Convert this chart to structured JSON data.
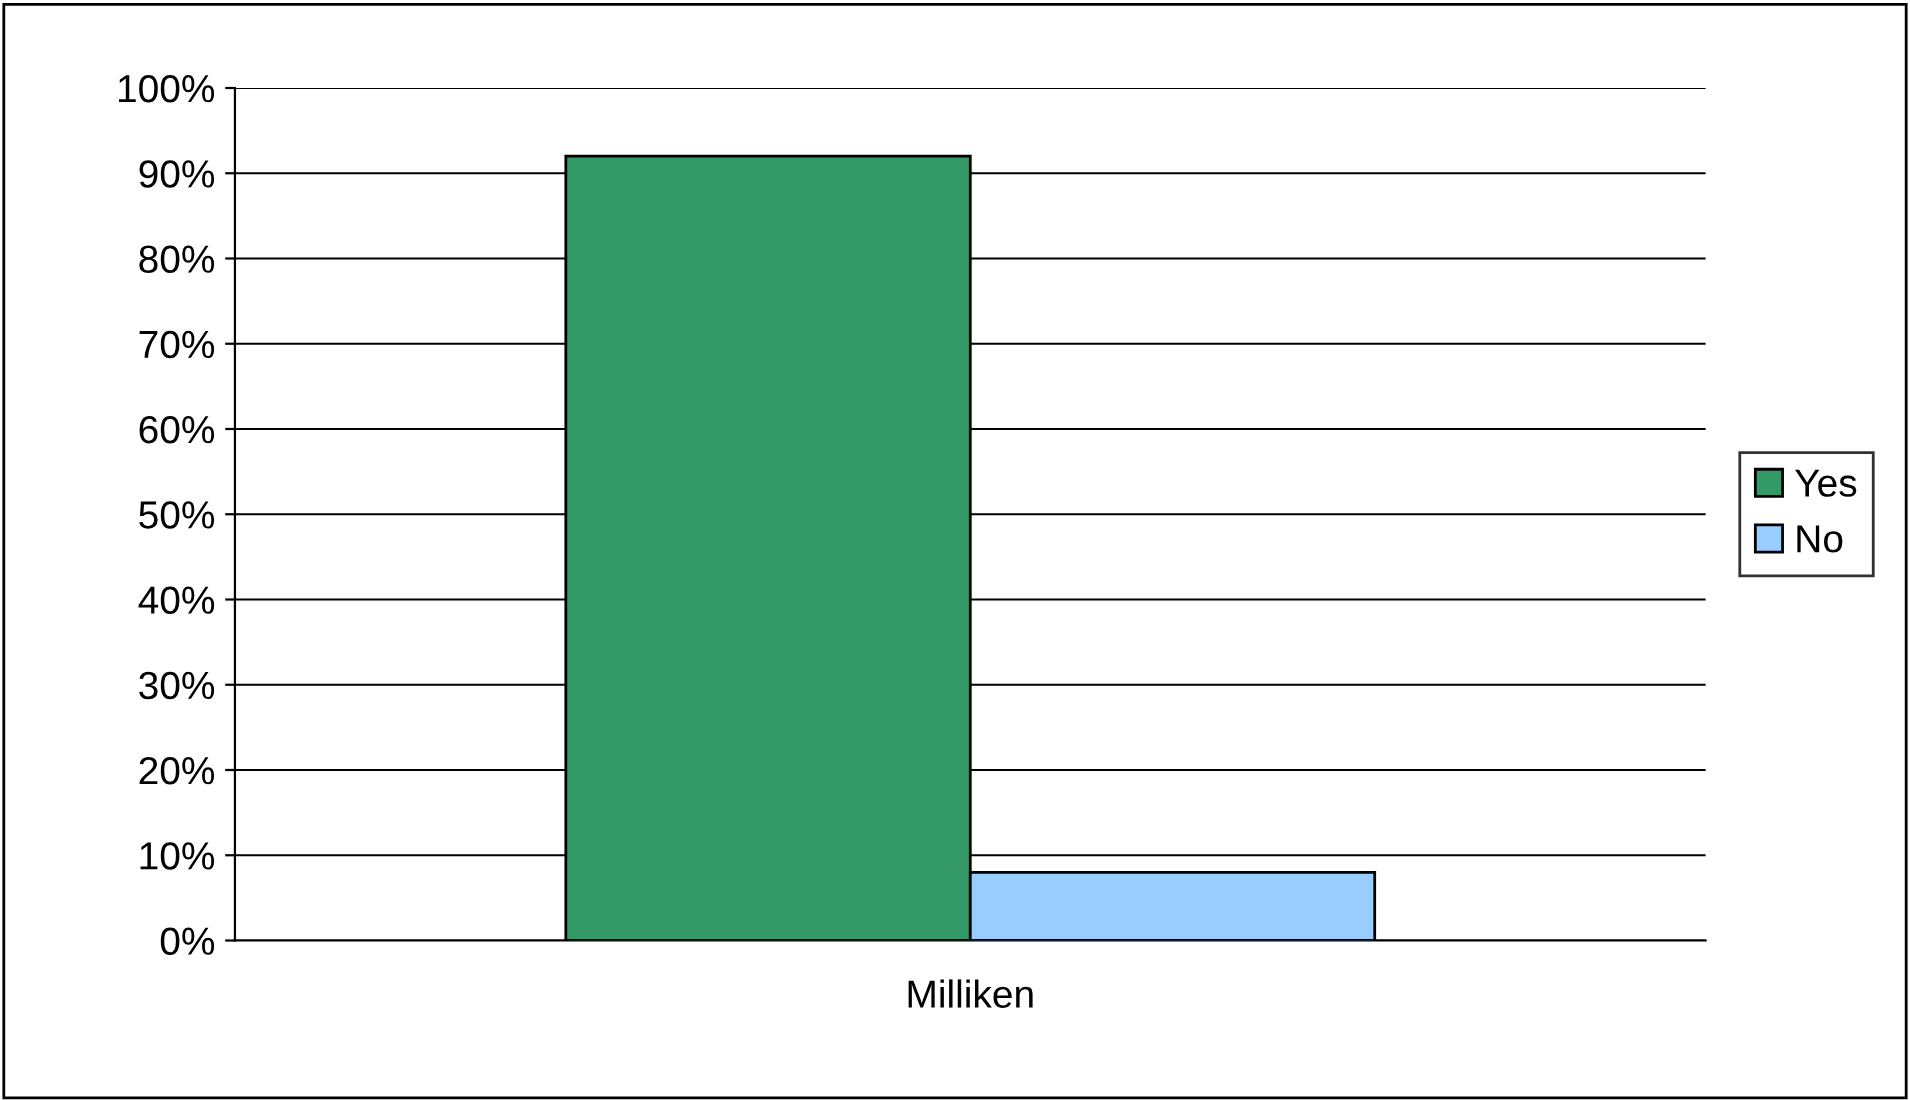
{
  "chart_data": {
    "type": "bar",
    "categories": [
      "Milliken"
    ],
    "series": [
      {
        "name": "Yes",
        "color": "#339966",
        "values": [
          92
        ]
      },
      {
        "name": "No",
        "color": "#99ccff",
        "values": [
          8
        ]
      }
    ],
    "ylim": [
      0,
      100
    ],
    "yticks": [
      {
        "value": 0,
        "label": "0%"
      },
      {
        "value": 10,
        "label": "10%"
      },
      {
        "value": 20,
        "label": "20%"
      },
      {
        "value": 30,
        "label": "30%"
      },
      {
        "value": 40,
        "label": "40%"
      },
      {
        "value": 50,
        "label": "50%"
      },
      {
        "value": 60,
        "label": "60%"
      },
      {
        "value": 70,
        "label": "70%"
      },
      {
        "value": 80,
        "label": "80%"
      },
      {
        "value": 90,
        "label": "90%"
      },
      {
        "value": 100,
        "label": "100%"
      }
    ],
    "grid": "y",
    "legend": "right"
  }
}
